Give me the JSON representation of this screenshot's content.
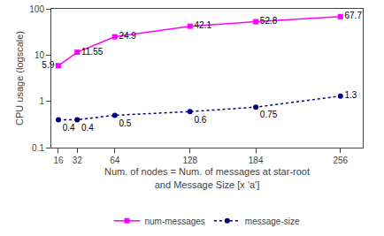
{
  "chart_data": {
    "type": "line",
    "x": [
      16,
      32,
      64,
      128,
      184,
      256
    ],
    "series": [
      {
        "name": "num-messages",
        "color": "#ff00ff",
        "marker": "square",
        "line_style": "solid",
        "values": [
          5.9,
          11.55,
          24.9,
          42.1,
          52.8,
          67.7
        ]
      },
      {
        "name": "message-size",
        "color": "#000080",
        "marker": "circle",
        "line_style": "dotted",
        "values": [
          0.4,
          0.4,
          0.5,
          0.6,
          0.75,
          1.3
        ]
      }
    ],
    "xlabel": "Num. of nodes = Num. of messages at star-root\nand Message Size [x 'a']",
    "ylabel": "CPU usage (logscale)",
    "xlim": [
      10,
      275
    ],
    "xticks": [
      16,
      32,
      64,
      128,
      184,
      256
    ],
    "ylim": [
      0.1,
      100
    ],
    "yticks": [
      0.1,
      1,
      10,
      100
    ],
    "log": "y",
    "grid": false,
    "legend": "bottom",
    "data_labels": true
  }
}
